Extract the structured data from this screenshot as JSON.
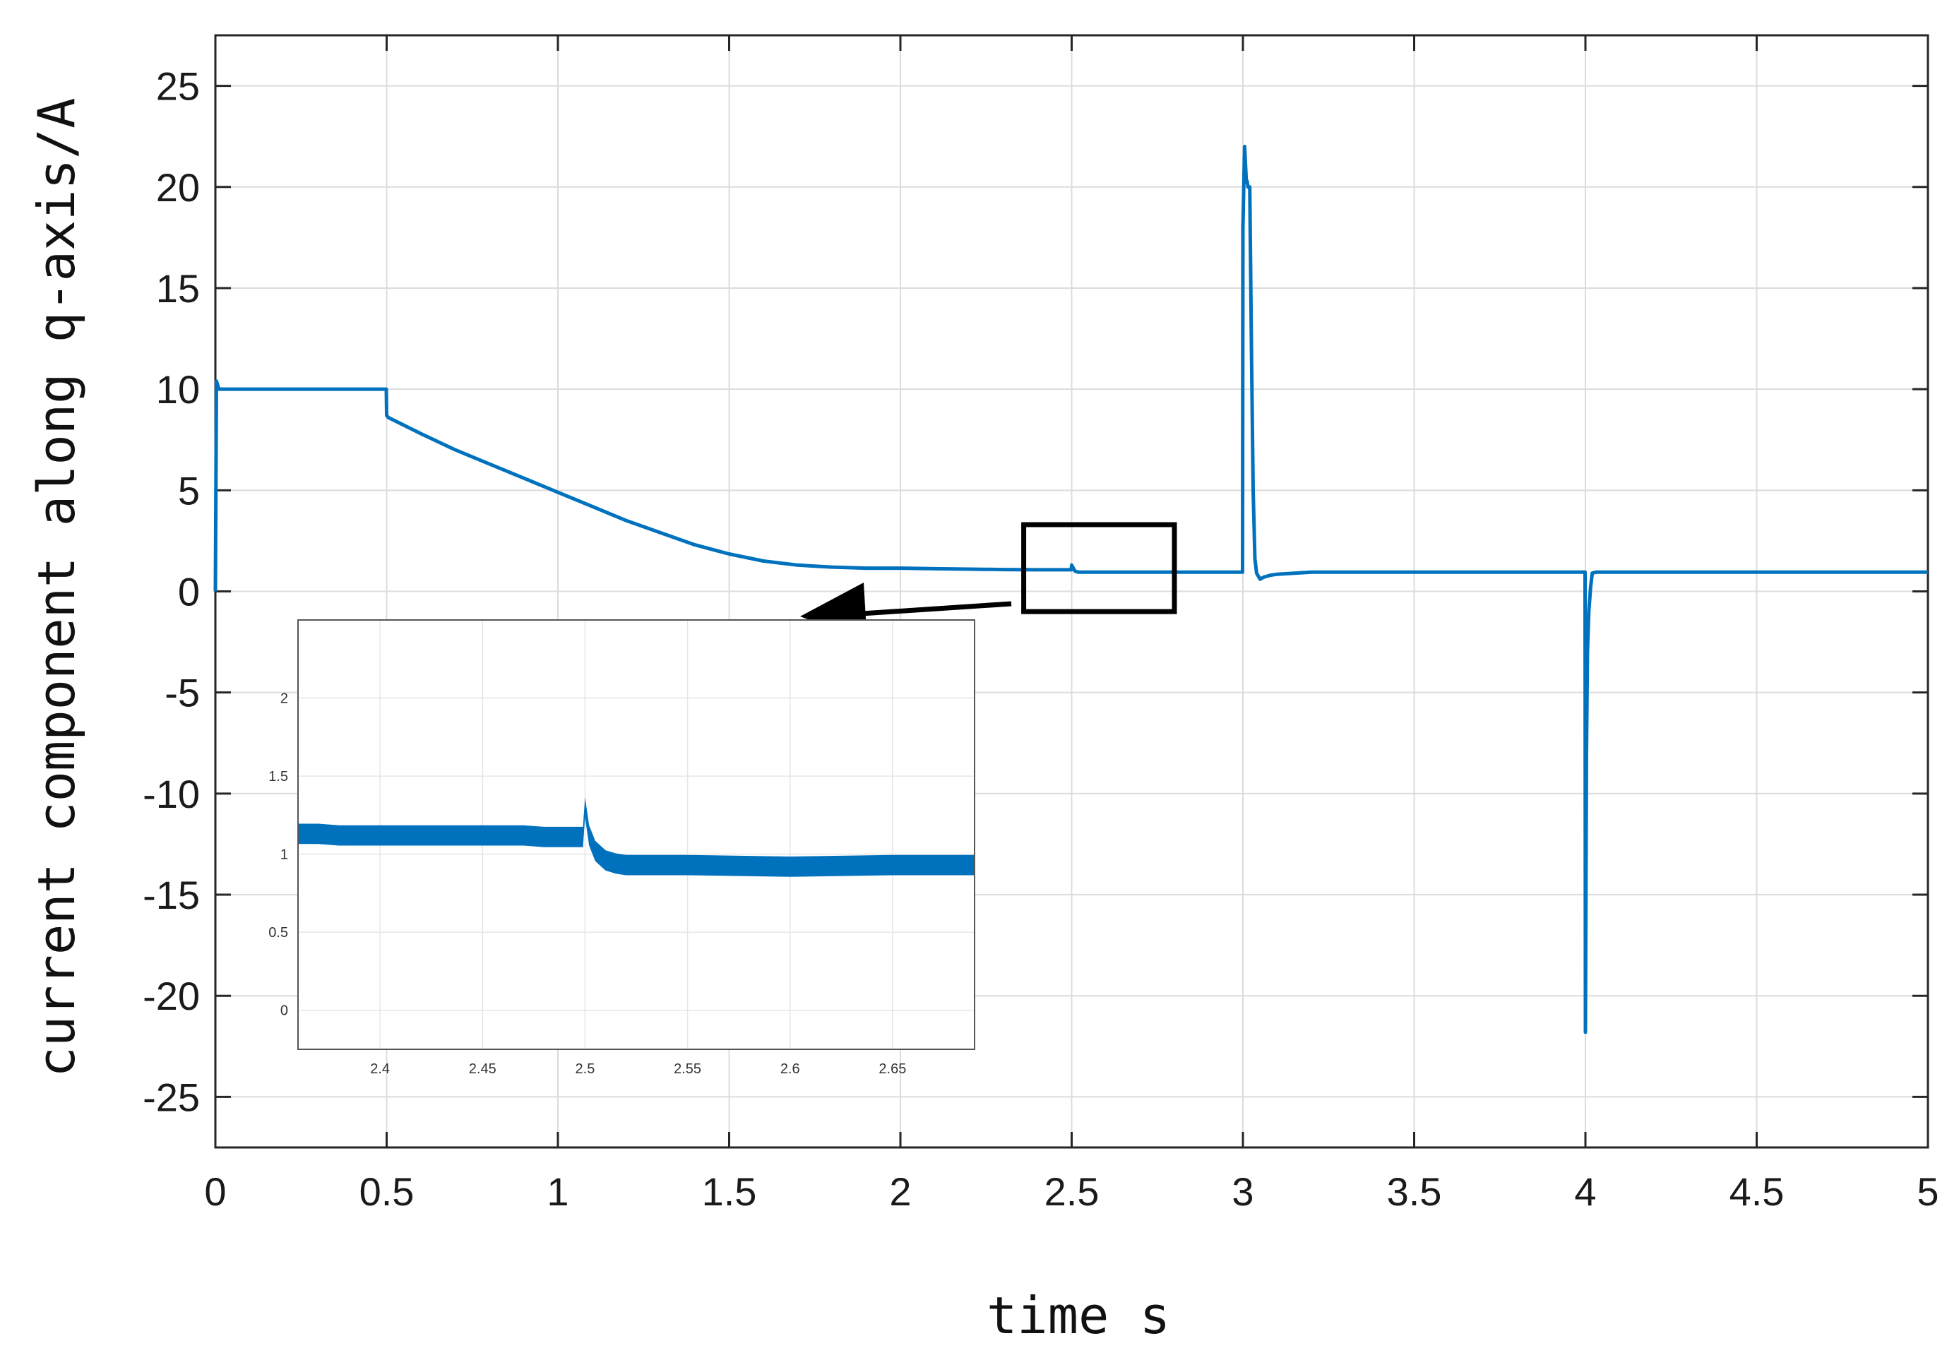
{
  "colors": {
    "series": "#0072BD",
    "axes": "#262626",
    "grid": "#dcdcdc",
    "box": "#000000",
    "background": "#ffffff"
  },
  "chart_data": [
    {
      "type": "line",
      "title": "",
      "xlabel": "time s",
      "ylabel": "current component along q-axis/A",
      "xlim": [
        0,
        5
      ],
      "ylim": [
        -27.5,
        27.5
      ],
      "xticks": [
        0,
        0.5,
        1,
        1.5,
        2,
        2.5,
        3,
        3.5,
        4,
        4.5,
        5
      ],
      "xtick_labels": [
        "0",
        "0.5",
        "1",
        "1.5",
        "2",
        "2.5",
        "3",
        "3.5",
        "4",
        "4.5",
        "5"
      ],
      "yticks": [
        25,
        20,
        15,
        10,
        5,
        0,
        -5,
        -10,
        -15,
        -20,
        -25
      ],
      "ytick_labels": [
        "25",
        "20",
        "15",
        "10",
        "5",
        "0",
        "-5",
        "-10",
        "-15",
        "-20",
        "-25"
      ],
      "grid": true,
      "legend": "none",
      "series": [
        {
          "x": [
            0,
            0.003,
            0.01,
            0.05,
            0.1,
            0.2,
            0.3,
            0.4,
            0.499,
            0.5,
            0.505,
            0.6,
            0.7,
            0.8,
            0.9,
            1.0,
            1.1,
            1.2,
            1.3,
            1.4,
            1.5,
            1.6,
            1.7,
            1.8,
            1.9,
            2.0,
            2.1,
            2.2,
            2.3,
            2.4,
            2.45,
            2.499,
            2.5,
            2.51,
            2.52,
            2.55,
            2.6,
            2.7,
            2.8,
            2.9,
            2.999,
            3.0,
            3.005,
            3.01,
            3.012,
            3.015,
            3.02,
            3.025,
            3.03,
            3.035,
            3.04,
            3.05,
            3.06,
            3.08,
            3.1,
            3.15,
            3.2,
            3.3,
            3.4,
            3.5,
            3.6,
            3.7,
            3.8,
            3.9,
            3.999,
            4.0,
            4.003,
            4.006,
            4.01,
            4.015,
            4.02,
            4.03,
            4.04,
            4.05,
            4.1,
            4.2,
            4.3,
            4.4,
            4.5,
            4.6,
            4.7,
            4.8,
            4.9,
            5.0
          ],
          "y": [
            0,
            10.4,
            10.0,
            10.0,
            10.0,
            10.0,
            10.0,
            10.0,
            10.0,
            8.7,
            8.6,
            7.8,
            7.0,
            6.3,
            5.6,
            4.9,
            4.2,
            3.5,
            2.9,
            2.3,
            1.85,
            1.5,
            1.3,
            1.2,
            1.15,
            1.15,
            1.12,
            1.1,
            1.08,
            1.07,
            1.07,
            1.07,
            1.3,
            1.0,
            0.95,
            0.95,
            0.95,
            0.95,
            0.95,
            0.95,
            0.95,
            18.0,
            22.0,
            20.3,
            20.3,
            20.0,
            20.0,
            12.0,
            5.0,
            1.6,
            0.9,
            0.6,
            0.7,
            0.8,
            0.85,
            0.9,
            0.95,
            0.95,
            0.95,
            0.95,
            0.95,
            0.95,
            0.95,
            0.95,
            0.95,
            -21.8,
            -8.0,
            -3.0,
            -1.0,
            0.2,
            0.9,
            0.95,
            0.95,
            0.95,
            0.95,
            0.95,
            0.95,
            0.95,
            0.95,
            0.95,
            0.95,
            0.95,
            0.95,
            0.95
          ]
        }
      ]
    },
    {
      "type": "line",
      "title": "",
      "xlabel": "",
      "ylabel": "",
      "xlim": [
        2.36,
        2.69
      ],
      "ylim": [
        -0.25,
        2.5
      ],
      "xticks": [
        2.4,
        2.45,
        2.5,
        2.55,
        2.6,
        2.65
      ],
      "xtick_labels": [
        "2.4",
        "2.45",
        "2.5",
        "2.55",
        "2.6",
        "2.65"
      ],
      "yticks": [
        2,
        1.5,
        1,
        0.5,
        0
      ],
      "ytick_labels": [
        "2",
        "1.5",
        "1",
        "0.5",
        "0"
      ],
      "grid": true,
      "legend": "none",
      "series": [
        {
          "x": [
            2.36,
            2.37,
            2.38,
            2.39,
            2.4,
            2.41,
            2.42,
            2.43,
            2.44,
            2.45,
            2.46,
            2.47,
            2.48,
            2.49,
            2.499,
            2.5,
            2.502,
            2.505,
            2.51,
            2.515,
            2.52,
            2.53,
            2.55,
            2.6,
            2.65,
            2.69
          ],
          "y": [
            1.13,
            1.13,
            1.12,
            1.12,
            1.12,
            1.12,
            1.12,
            1.12,
            1.12,
            1.12,
            1.12,
            1.12,
            1.11,
            1.11,
            1.11,
            1.3,
            1.12,
            1.02,
            0.96,
            0.94,
            0.93,
            0.93,
            0.93,
            0.92,
            0.93,
            0.93
          ],
          "band_width": 0.13
        }
      ]
    }
  ],
  "callout": {
    "main_box": {
      "x": [
        2.36,
        2.8
      ],
      "y": [
        -1,
        3.3
      ]
    }
  }
}
